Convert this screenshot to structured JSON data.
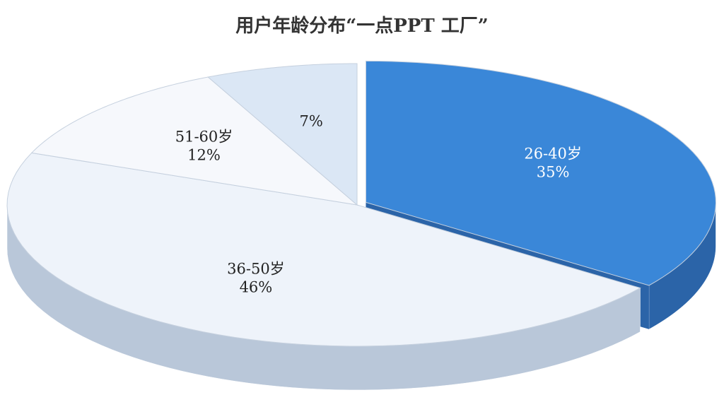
{
  "chart_data": {
    "type": "pie3d",
    "title": "用户年龄分布“一点PPT 工厂”",
    "categories": [
      "26-40岁",
      "36-50岁",
      "51-60岁",
      null
    ],
    "values": [
      35,
      46,
      12,
      7
    ],
    "value_labels": [
      "35%",
      "46%",
      "12%",
      "7%"
    ],
    "colors": [
      "#3a87d8",
      "#eef3fa",
      "#f6f8fc",
      "#dbe7f5"
    ],
    "side_colors": [
      "#2b64a8",
      "#b9c7d9",
      "#c9d4e2",
      "#b4c6dc"
    ],
    "exploded": [
      true,
      false,
      false,
      false
    ]
  }
}
